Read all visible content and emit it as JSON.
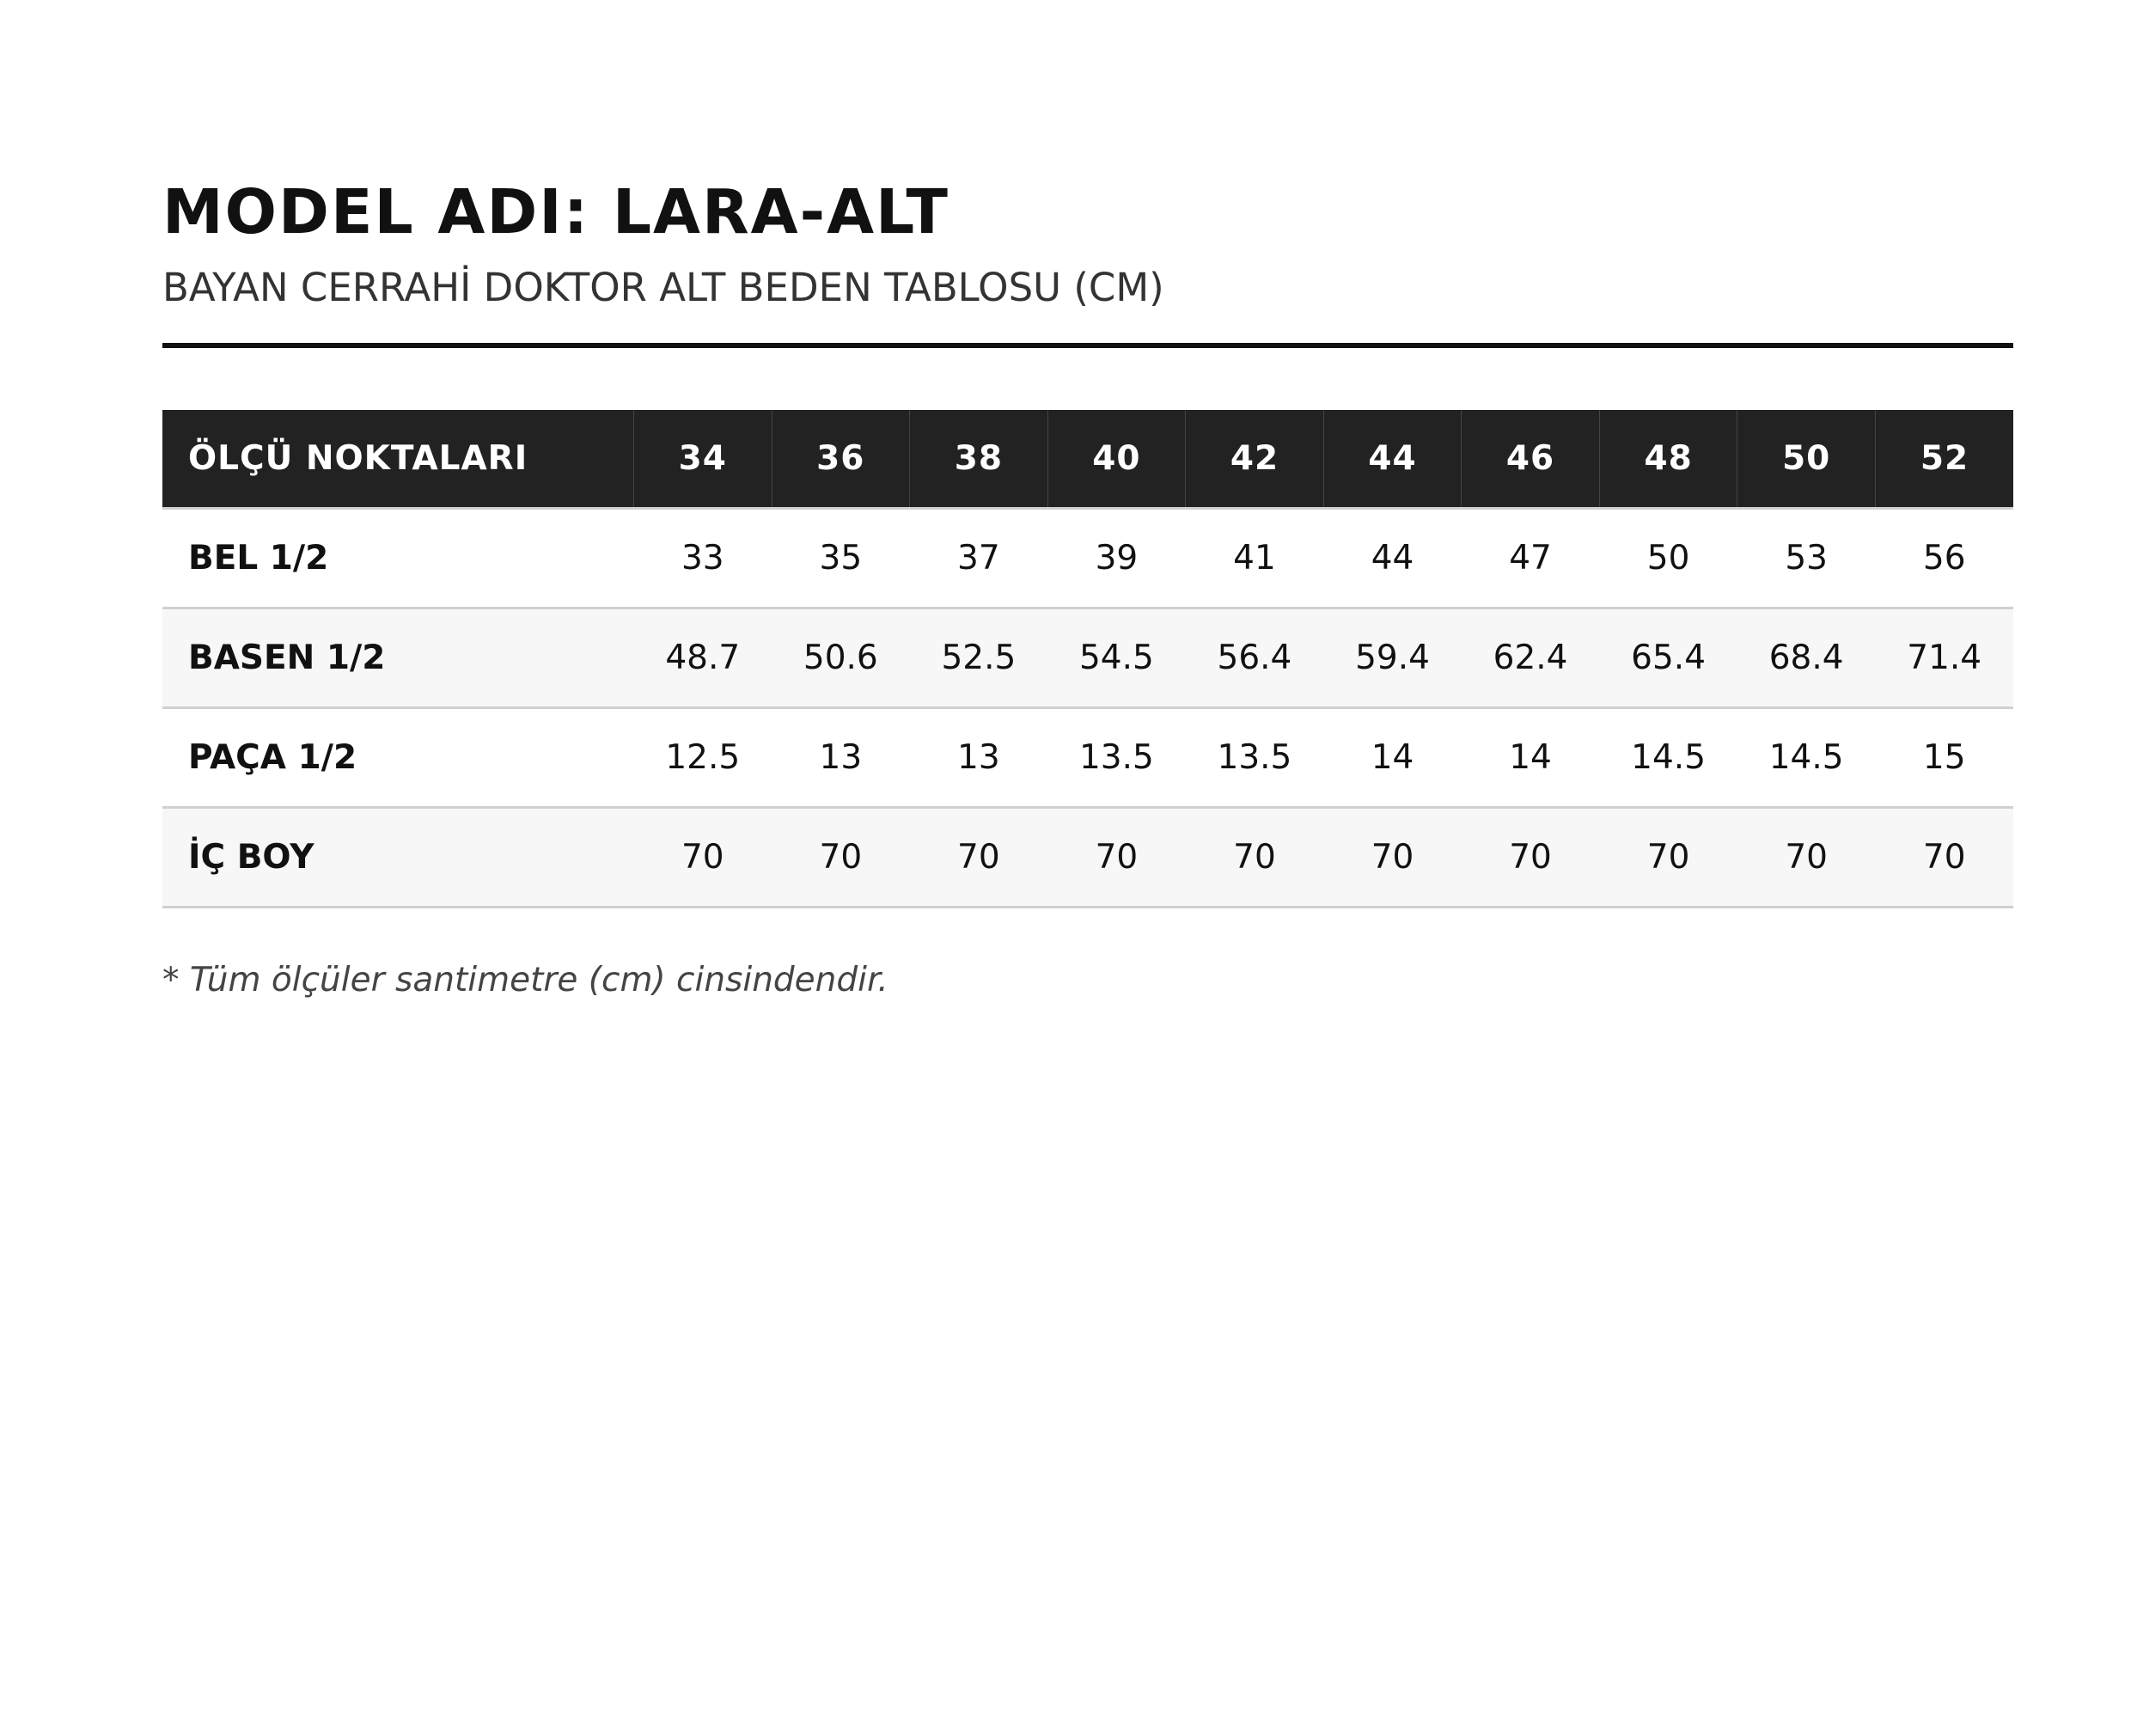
{
  "header": {
    "title": "MODEL ADI: LARA-ALT",
    "subtitle": "BAYAN CERRAHİ DOKTOR ALT BEDEN TABLOSU (CM)"
  },
  "table": {
    "columns": [
      "ÖLÇÜ NOKTALARI",
      "34",
      "36",
      "38",
      "40",
      "42",
      "44",
      "46",
      "48",
      "50",
      "52"
    ],
    "rows": [
      {
        "label": "BEL 1/2",
        "values": [
          33,
          35,
          37,
          39,
          41,
          44,
          47,
          50,
          53,
          56
        ]
      },
      {
        "label": "BASEN 1/2",
        "values": [
          48.7,
          50.6,
          52.5,
          54.5,
          56.4,
          59.4,
          62.4,
          65.4,
          68.4,
          71.4
        ]
      },
      {
        "label": "PAÇA 1/2",
        "values": [
          12.5,
          13,
          13,
          13.5,
          13.5,
          14,
          14,
          14.5,
          14.5,
          15
        ]
      },
      {
        "label": "İÇ BOY",
        "values": [
          70,
          70,
          70,
          70,
          70,
          70,
          70,
          70,
          70,
          70
        ]
      }
    ]
  },
  "footnote": "* Tüm ölçüler santimetre (cm) cinsindendir."
}
